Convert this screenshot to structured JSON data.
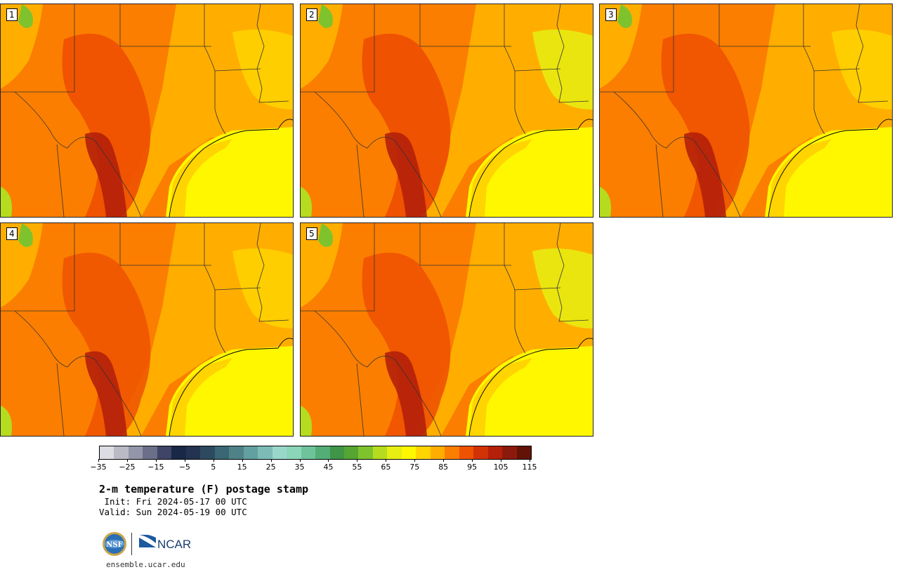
{
  "panels": [
    {
      "label": "1",
      "variant": 0
    },
    {
      "label": "2",
      "variant": 1
    },
    {
      "label": "3",
      "variant": 2
    },
    {
      "label": "4",
      "variant": 3
    },
    {
      "label": "5",
      "variant": 4
    }
  ],
  "colorbar": {
    "colors": [
      "#dcdde3",
      "#b9bac6",
      "#9396a8",
      "#6b6f88",
      "#3e4566",
      "#1a2848",
      "#22344f",
      "#2d4a60",
      "#3b6673",
      "#4f8287",
      "#63a0a0",
      "#7bbcb7",
      "#9ad7cb",
      "#8bd5b9",
      "#6ec39a",
      "#53ad76",
      "#3f9548",
      "#55a533",
      "#7ec32d",
      "#b5dc1e",
      "#e6ee12",
      "#fff700",
      "#ffd400",
      "#ffae00",
      "#fb7e00",
      "#ef5200",
      "#d13306",
      "#b4200a",
      "#8c1a0c",
      "#621306"
    ],
    "ticks": [
      "−35",
      "−25",
      "−15",
      "−5",
      "5",
      "15",
      "25",
      "35",
      "45",
      "55",
      "65",
      "75",
      "85",
      "95",
      "105",
      "115"
    ]
  },
  "title": "2-m temperature (F) postage stamp",
  "init": " Init: Fri 2024-05-17 00 UTC",
  "valid": "Valid: Sun 2024-05-19 00 UTC",
  "logos": {
    "nsf": "NSF",
    "ncar": "NCAR"
  },
  "site": "ensemble.ucar.edu"
}
